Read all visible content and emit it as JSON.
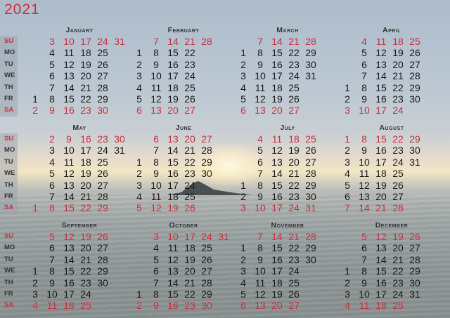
{
  "year": "2021",
  "colors": {
    "weekend": "#c8303f",
    "weekday": "#1a1a1a"
  },
  "weekday_labels": [
    "SU",
    "MO",
    "TU",
    "WE",
    "TH",
    "FR",
    "SA"
  ],
  "months": [
    {
      "name": "January",
      "weeks": [
        [
          null,
          null,
          null,
          null,
          null,
          1,
          2
        ],
        [
          3,
          4,
          5,
          6,
          7,
          8,
          9
        ],
        [
          10,
          11,
          12,
          13,
          14,
          15,
          16
        ],
        [
          17,
          18,
          19,
          20,
          21,
          22,
          23
        ],
        [
          24,
          25,
          26,
          27,
          28,
          29,
          30
        ],
        [
          31
        ]
      ]
    },
    {
      "name": "February",
      "weeks": [
        [
          null,
          1,
          2,
          3,
          4,
          5,
          6
        ],
        [
          7,
          8,
          9,
          10,
          11,
          12,
          13
        ],
        [
          14,
          15,
          16,
          17,
          18,
          19,
          20
        ],
        [
          21,
          22,
          23,
          24,
          25,
          26,
          27
        ],
        [
          28
        ]
      ]
    },
    {
      "name": "March",
      "weeks": [
        [
          null,
          1,
          2,
          3,
          4,
          5,
          6
        ],
        [
          7,
          8,
          9,
          10,
          11,
          12,
          13
        ],
        [
          14,
          15,
          16,
          17,
          18,
          19,
          20
        ],
        [
          21,
          22,
          23,
          24,
          25,
          26,
          27
        ],
        [
          28,
          29,
          30,
          31
        ]
      ]
    },
    {
      "name": "April",
      "weeks": [
        [
          null,
          null,
          null,
          null,
          1,
          2,
          3
        ],
        [
          4,
          5,
          6,
          7,
          8,
          9,
          10
        ],
        [
          11,
          12,
          13,
          14,
          15,
          16,
          17
        ],
        [
          18,
          19,
          20,
          21,
          22,
          23,
          24
        ],
        [
          25,
          26,
          27,
          28,
          29,
          30
        ]
      ]
    },
    {
      "name": "May",
      "weeks": [
        [
          null,
          null,
          null,
          null,
          null,
          null,
          1
        ],
        [
          2,
          3,
          4,
          5,
          6,
          7,
          8
        ],
        [
          9,
          10,
          11,
          12,
          13,
          14,
          15
        ],
        [
          16,
          17,
          18,
          19,
          20,
          21,
          22
        ],
        [
          23,
          24,
          25,
          26,
          27,
          28,
          29
        ],
        [
          30,
          31
        ]
      ]
    },
    {
      "name": "June",
      "weeks": [
        [
          null,
          null,
          1,
          2,
          3,
          4,
          5
        ],
        [
          6,
          7,
          8,
          9,
          10,
          11,
          12
        ],
        [
          13,
          14,
          15,
          16,
          17,
          18,
          19
        ],
        [
          20,
          21,
          22,
          23,
          24,
          25,
          26
        ],
        [
          27,
          28,
          29,
          30
        ]
      ]
    },
    {
      "name": "July",
      "weeks": [
        [
          null,
          null,
          null,
          null,
          1,
          2,
          3
        ],
        [
          4,
          5,
          6,
          7,
          8,
          9,
          10
        ],
        [
          11,
          12,
          13,
          14,
          15,
          16,
          17
        ],
        [
          18,
          19,
          20,
          21,
          22,
          23,
          24
        ],
        [
          25,
          26,
          27,
          28,
          29,
          30,
          31
        ]
      ]
    },
    {
      "name": "August",
      "weeks": [
        [
          1,
          2,
          3,
          4,
          5,
          6,
          7
        ],
        [
          8,
          9,
          10,
          11,
          12,
          13,
          14
        ],
        [
          15,
          16,
          17,
          18,
          19,
          20,
          21
        ],
        [
          22,
          23,
          24,
          25,
          26,
          27,
          28
        ],
        [
          29,
          30,
          31
        ]
      ]
    },
    {
      "name": "September",
      "weeks": [
        [
          null,
          null,
          null,
          1,
          2,
          3,
          4
        ],
        [
          5,
          6,
          7,
          8,
          9,
          10,
          11
        ],
        [
          12,
          13,
          14,
          15,
          16,
          17,
          18
        ],
        [
          19,
          20,
          21,
          22,
          23,
          24,
          25
        ],
        [
          26,
          27,
          28,
          29,
          30
        ]
      ]
    },
    {
      "name": "October",
      "weeks": [
        [
          null,
          null,
          null,
          null,
          null,
          1,
          2
        ],
        [
          3,
          4,
          5,
          6,
          7,
          8,
          9
        ],
        [
          10,
          11,
          12,
          13,
          14,
          15,
          16
        ],
        [
          17,
          18,
          19,
          20,
          21,
          22,
          23
        ],
        [
          24,
          25,
          26,
          27,
          28,
          29,
          30
        ],
        [
          31
        ]
      ]
    },
    {
      "name": "November",
      "weeks": [
        [
          null,
          1,
          2,
          3,
          4,
          5,
          6
        ],
        [
          7,
          8,
          9,
          10,
          11,
          12,
          13
        ],
        [
          14,
          15,
          16,
          17,
          18,
          19,
          20
        ],
        [
          21,
          22,
          23,
          24,
          25,
          26,
          27
        ],
        [
          28,
          29,
          30
        ]
      ]
    },
    {
      "name": "December",
      "weeks": [
        [
          null,
          null,
          null,
          1,
          2,
          3,
          4
        ],
        [
          5,
          6,
          7,
          8,
          9,
          10,
          11
        ],
        [
          12,
          13,
          14,
          15,
          16,
          17,
          18
        ],
        [
          19,
          20,
          21,
          22,
          23,
          24,
          25
        ],
        [
          26,
          27,
          28,
          29,
          30,
          31
        ]
      ]
    }
  ]
}
